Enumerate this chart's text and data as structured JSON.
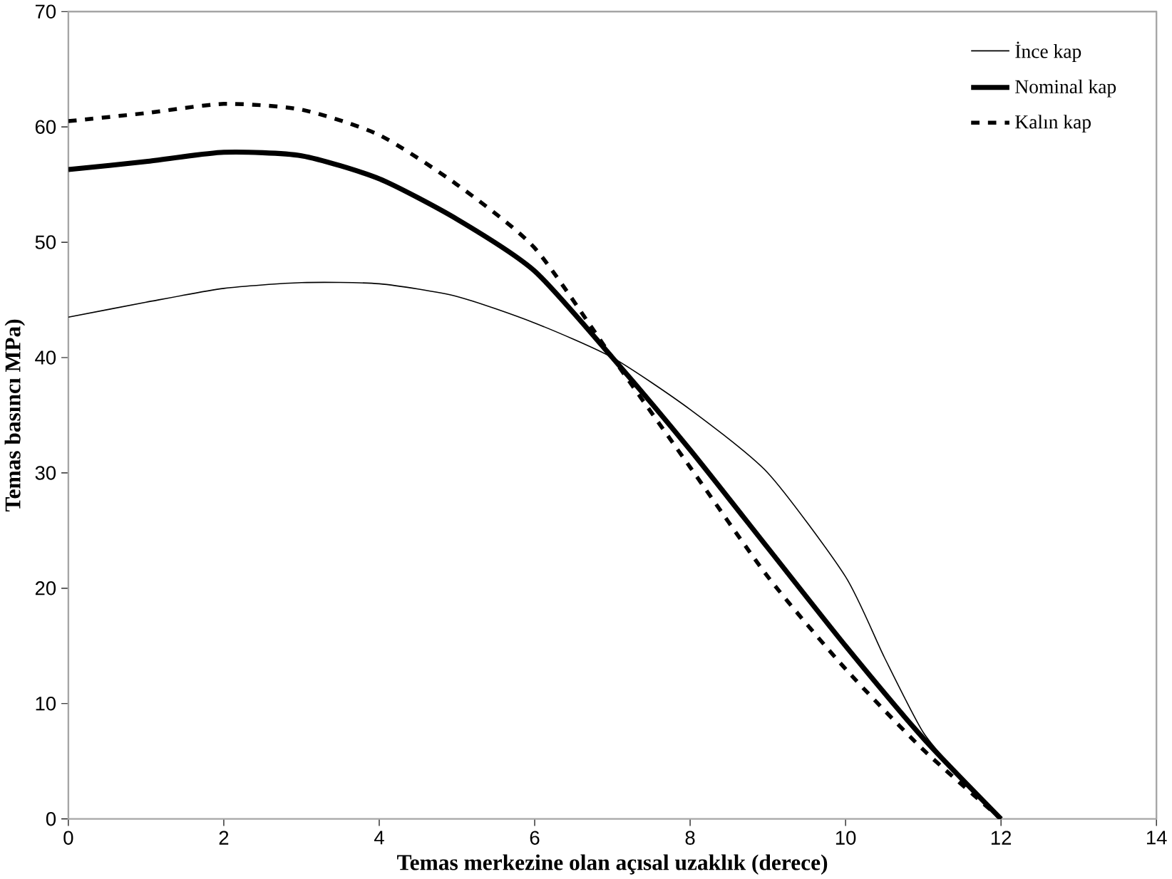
{
  "chart_data": {
    "type": "line",
    "xlabel": "Temas merkezine olan açısal uzaklık (derece)",
    "ylabel": "Temas basıncı MPa)",
    "xlim": [
      0,
      14
    ],
    "xticks": [
      0,
      2,
      4,
      6,
      8,
      10,
      12,
      14
    ],
    "ylim": [
      0,
      70
    ],
    "yticks": [
      0,
      10,
      20,
      30,
      40,
      50,
      60,
      70
    ],
    "grid": false,
    "legend": "top right",
    "marker": "none",
    "series": [
      {
        "name": "İnce kap",
        "color": "#000000",
        "line_style": "solid",
        "x": [
          0,
          1,
          2,
          3,
          4,
          5,
          6,
          7,
          8,
          9,
          10,
          10.5,
          11,
          11.5,
          12
        ],
        "values": [
          43.5,
          44.8,
          46,
          46.5,
          46.4,
          45.3,
          43,
          40,
          35.5,
          30,
          21,
          14,
          7.5,
          3.5,
          0
        ]
      },
      {
        "name": "Nominal kap",
        "color": "#000000",
        "line_style": "solid",
        "x": [
          0,
          1,
          2,
          3,
          4,
          5,
          6,
          7,
          8,
          9,
          10,
          11,
          12
        ],
        "values": [
          56.3,
          57,
          57.8,
          57.5,
          55.5,
          52,
          47.5,
          40,
          32,
          23.5,
          15,
          7,
          0
        ]
      },
      {
        "name": "Kalın kap",
        "color": "#000000",
        "line_style": "dashed",
        "x": [
          0,
          1,
          2,
          3,
          4,
          5,
          6,
          7,
          8,
          9,
          10,
          11,
          12
        ],
        "values": [
          60.5,
          61.2,
          62,
          61.5,
          59.3,
          55,
          49.5,
          40,
          30.5,
          21,
          13,
          6,
          0
        ]
      }
    ]
  }
}
